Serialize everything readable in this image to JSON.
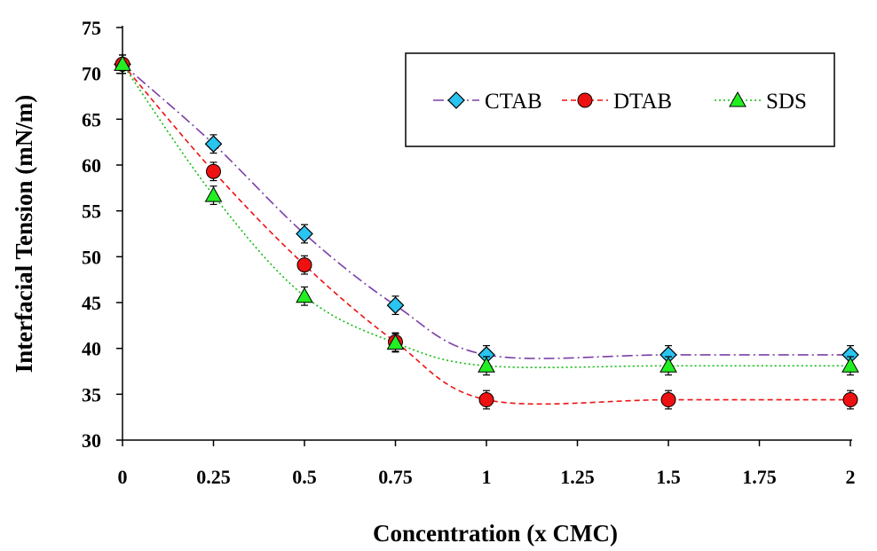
{
  "chart_data": {
    "type": "line",
    "xlabel": "Concentration (x CMC)",
    "ylabel": "Interfacial Tension (mN/m)",
    "ylim": [
      30,
      75
    ],
    "xlim": [
      0,
      2
    ],
    "x_ticks": [
      "0",
      "0.25",
      "0.5",
      "0.75",
      "1",
      "1.25",
      "1.5",
      "1.75",
      "2"
    ],
    "y_ticks": [
      "30",
      "35",
      "40",
      "45",
      "50",
      "55",
      "60",
      "65",
      "70",
      "75"
    ],
    "grid": false,
    "legend_position": "top-right",
    "x": [
      0,
      0.25,
      0.5,
      0.75,
      1,
      1.5,
      2
    ],
    "series": [
      {
        "name": "CTAB",
        "marker": "diamond",
        "color": "#29c4f0",
        "line_color": "#7b3fa8",
        "line_style": "dash-dot",
        "values": [
          71,
          62.3,
          52.5,
          44.7,
          39.3,
          39.3,
          39.3
        ]
      },
      {
        "name": "DTAB",
        "marker": "circle",
        "color": "#ee1111",
        "line_color": "#ee1111",
        "line_style": "dashed",
        "values": [
          71,
          59.3,
          49.1,
          40.7,
          34.4,
          34.4,
          34.4
        ]
      },
      {
        "name": "SDS",
        "marker": "triangle",
        "color": "#22ee22",
        "line_color": "#11bb11",
        "line_style": "dotted",
        "values": [
          71,
          56.7,
          45.7,
          40.6,
          38.1,
          38.1,
          38.1
        ]
      }
    ],
    "error_bar": 1
  }
}
